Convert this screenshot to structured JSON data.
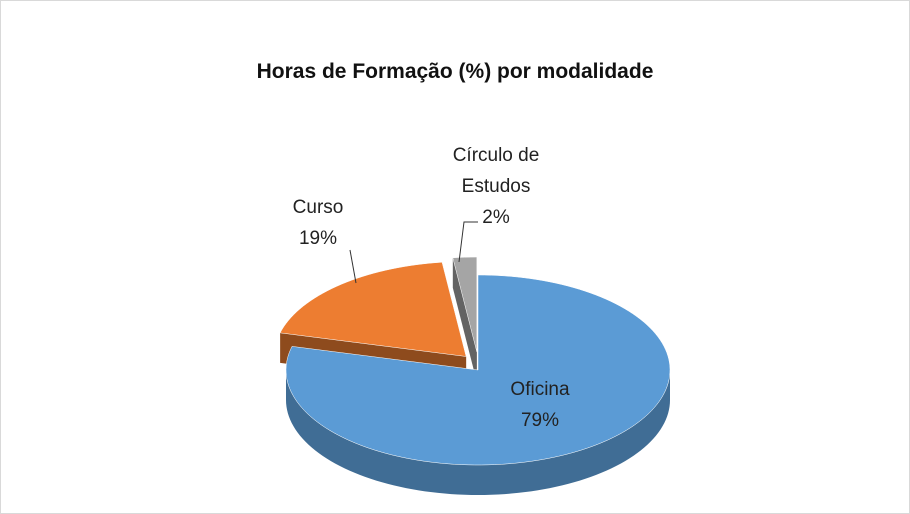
{
  "chart_data": {
    "type": "pie",
    "title": "Horas de Formação (%) por modalidade",
    "categories": [
      "Oficina",
      "Curso",
      "Círculo de Estudos"
    ],
    "values": [
      79,
      19,
      2
    ],
    "value_labels": [
      "79%",
      "19%",
      "2%"
    ],
    "colors": [
      "#5b9bd5",
      "#ed7d31",
      "#a5a5a5"
    ]
  }
}
